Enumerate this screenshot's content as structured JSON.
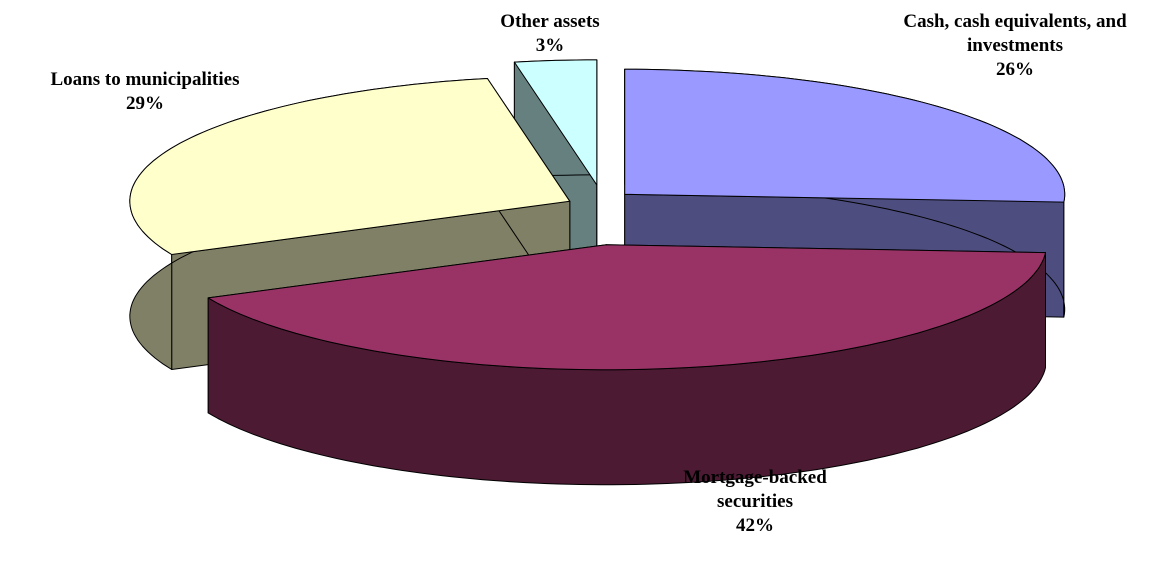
{
  "chart_data": {
    "type": "pie",
    "categories": [
      "Cash, cash equivalents, and investments",
      "Mortgage-backed securities",
      "Loans to municipalities",
      "Other assets"
    ],
    "values": [
      26,
      42,
      29,
      3
    ],
    "value_labels": [
      "26%",
      "42%",
      "29%",
      "3%"
    ],
    "colors": [
      "#9999ff",
      "#993366",
      "#ffffcc",
      "#ccffff"
    ]
  }
}
